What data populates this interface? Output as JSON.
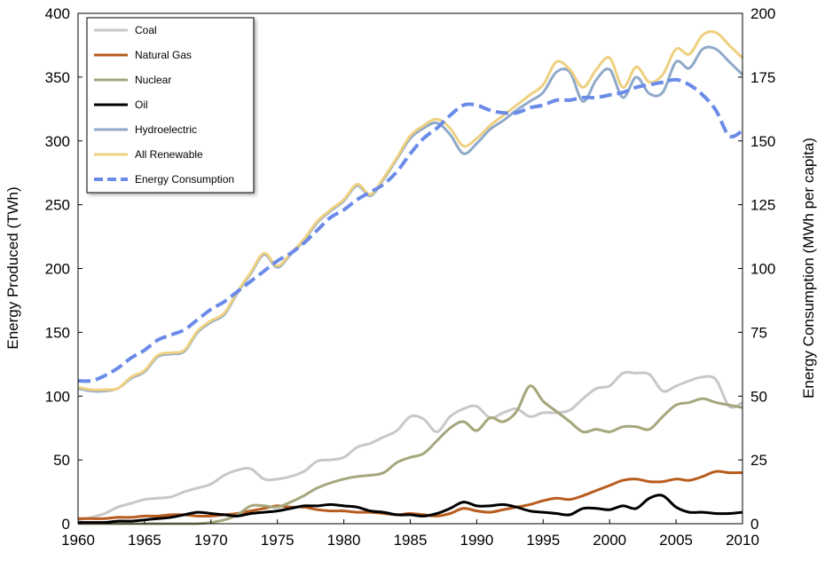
{
  "chart_data": {
    "type": "line",
    "title": "",
    "xlabel": "",
    "ylabel": "Energy Produced (TWh)",
    "y2label": "Energy Consumption (MWh per capita)",
    "xlim": [
      1960,
      2010
    ],
    "ylim": [
      0,
      400
    ],
    "y2lim": [
      0,
      200
    ],
    "x_ticks": [
      "1960",
      "1965",
      "1970",
      "1975",
      "1980",
      "1985",
      "1990",
      "1995",
      "2000",
      "2005",
      "2010"
    ],
    "y_ticks": [
      "0",
      "50",
      "100",
      "150",
      "200",
      "250",
      "300",
      "350",
      "400"
    ],
    "y2_ticks": [
      "0",
      "25",
      "50",
      "75",
      "100",
      "125",
      "150",
      "175",
      "200"
    ],
    "grid": false,
    "legend": "top-left",
    "x": [
      1960,
      1961,
      1962,
      1963,
      1964,
      1965,
      1966,
      1967,
      1968,
      1969,
      1970,
      1971,
      1972,
      1973,
      1974,
      1975,
      1976,
      1977,
      1978,
      1979,
      1980,
      1981,
      1982,
      1983,
      1984,
      1985,
      1986,
      1987,
      1988,
      1989,
      1990,
      1991,
      1992,
      1993,
      1994,
      1995,
      1996,
      1997,
      1998,
      1999,
      2000,
      2001,
      2002,
      2003,
      2004,
      2005,
      2006,
      2007,
      2008,
      2009,
      2010
    ],
    "series": [
      {
        "name": "Coal",
        "axis": "left",
        "color": "#c8c8c8",
        "style": "solid",
        "values": [
          3,
          5,
          8,
          13,
          16,
          19,
          20,
          21,
          25,
          28,
          31,
          38,
          42,
          43,
          35,
          35,
          37,
          41,
          49,
          50,
          52,
          60,
          63,
          68,
          73,
          84,
          82,
          72,
          84,
          90,
          92,
          83,
          87,
          90,
          84,
          87,
          87,
          89,
          98,
          106,
          108,
          118,
          118,
          117,
          104,
          108,
          112,
          115,
          113,
          92,
          95
        ]
      },
      {
        "name": "Natural Gas",
        "axis": "left",
        "color": "#b85c1e",
        "style": "solid",
        "values": [
          4,
          4,
          4,
          5,
          5,
          6,
          6,
          7,
          7,
          6,
          6,
          7,
          8,
          10,
          12,
          14,
          13,
          13,
          11,
          10,
          10,
          9,
          9,
          8,
          7,
          8,
          7,
          6,
          8,
          12,
          10,
          9,
          11,
          13,
          15,
          18,
          20,
          19,
          22,
          26,
          30,
          34,
          35,
          33,
          33,
          35,
          34,
          37,
          41,
          40,
          40
        ]
      },
      {
        "name": "Nuclear",
        "axis": "left",
        "color": "#a6a67c",
        "style": "solid",
        "values": [
          0,
          0,
          0,
          0,
          0,
          0,
          0,
          0,
          0,
          0,
          1,
          3,
          7,
          14,
          14,
          13,
          17,
          22,
          28,
          32,
          35,
          37,
          38,
          40,
          48,
          52,
          55,
          65,
          75,
          80,
          73,
          83,
          80,
          88,
          108,
          96,
          88,
          80,
          72,
          74,
          72,
          76,
          76,
          74,
          84,
          93,
          95,
          98,
          95,
          93,
          91
        ]
      },
      {
        "name": "Oil",
        "axis": "left",
        "color": "#000000",
        "style": "solid",
        "values": [
          1,
          1,
          1,
          2,
          2,
          3,
          4,
          5,
          7,
          9,
          8,
          7,
          6,
          8,
          9,
          10,
          12,
          14,
          14,
          15,
          14,
          13,
          10,
          9,
          7,
          7,
          6,
          8,
          12,
          17,
          14,
          14,
          15,
          13,
          10,
          9,
          8,
          7,
          12,
          12,
          11,
          14,
          12,
          20,
          22,
          13,
          9,
          9,
          8,
          8,
          9
        ]
      },
      {
        "name": "Hydroelectric",
        "axis": "left",
        "color": "#8ea9c9",
        "style": "solid",
        "values": [
          106,
          104,
          104,
          106,
          114,
          119,
          131,
          133,
          135,
          150,
          158,
          164,
          181,
          196,
          211,
          201,
          211,
          222,
          236,
          245,
          253,
          265,
          257,
          270,
          286,
          302,
          310,
          314,
          305,
          290,
          298,
          309,
          316,
          324,
          331,
          338,
          354,
          354,
          331,
          348,
          356,
          334,
          350,
          337,
          338,
          362,
          357,
          372,
          372,
          362,
          352
        ]
      },
      {
        "name": "All Renewable",
        "axis": "left",
        "color": "#eed080",
        "style": "solid",
        "values": [
          107,
          105,
          105,
          106,
          115,
          120,
          132,
          134,
          136,
          151,
          159,
          165,
          182,
          197,
          212,
          202,
          212,
          223,
          237,
          246,
          254,
          266,
          258,
          271,
          287,
          304,
          312,
          317,
          310,
          296,
          302,
          312,
          320,
          328,
          336,
          344,
          362,
          356,
          342,
          356,
          365,
          342,
          358,
          346,
          352,
          372,
          368,
          383,
          385,
          375,
          365
        ]
      },
      {
        "name": "Energy Consumption",
        "axis": "right",
        "color": "#6b8be8",
        "style": "dashed",
        "values": [
          56,
          56,
          58,
          61,
          65,
          68,
          72,
          74,
          76,
          80,
          84,
          87,
          91,
          95,
          99,
          103,
          106,
          110,
          115,
          120,
          123,
          127,
          130,
          133,
          138,
          145,
          151,
          155,
          160,
          164,
          164,
          162,
          161,
          161,
          163,
          164,
          166,
          166,
          167,
          167,
          168,
          169,
          171,
          172,
          173,
          174,
          172,
          168,
          162,
          152,
          154
        ]
      }
    ]
  }
}
